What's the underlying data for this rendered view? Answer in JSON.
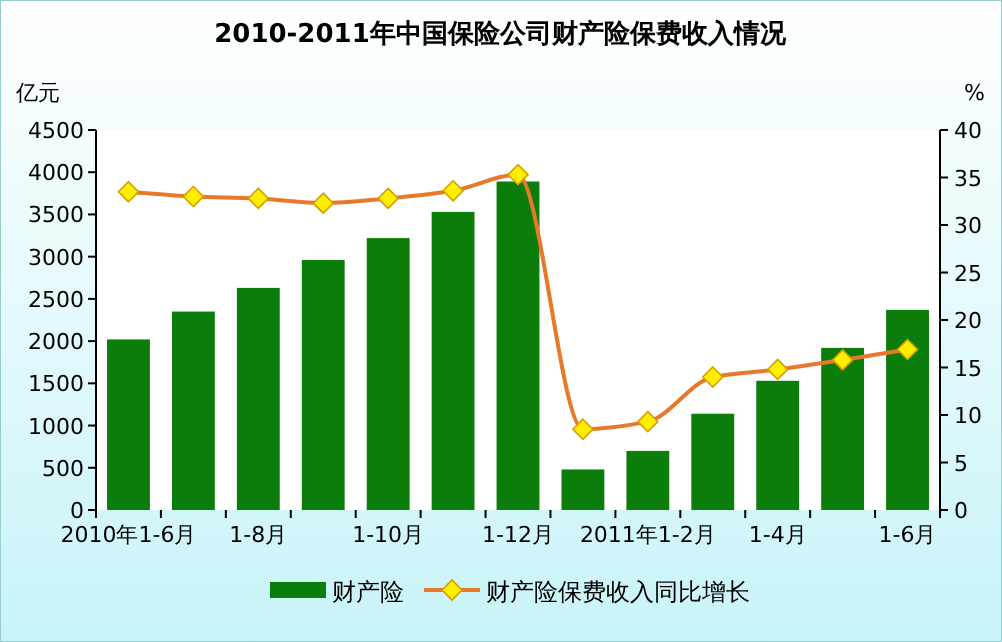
{
  "chart_data": {
    "type": "bar",
    "title": "2010-2011年中国保险公司财产险保费收入情况",
    "ylabel": "亿元",
    "y2label": "%",
    "categories": [
      "2010年1-6月",
      null,
      "1-8月",
      null,
      "1-10月",
      null,
      "1-12月",
      null,
      "2011年1-2月",
      null,
      "1-4月",
      null,
      "1-6月"
    ],
    "series": [
      {
        "name": "财产险",
        "color": "#0a7d0a",
        "values": [
          2020,
          2350,
          2630,
          2960,
          3220,
          3530,
          3890,
          480,
          700,
          1140,
          1530,
          1920,
          2370
        ]
      },
      {
        "name": "财产险保费收入同比增长",
        "type": "line",
        "axis": "y2",
        "color": "#e8782a",
        "marker": "diamond",
        "values": [
          33.5,
          33.0,
          32.8,
          32.3,
          32.8,
          33.6,
          35.3,
          8.5,
          9.3,
          14.0,
          14.8,
          15.8,
          16.9
        ]
      }
    ],
    "ylim": [
      0,
      4500
    ],
    "yticks": [
      0,
      500,
      1000,
      1500,
      2000,
      2500,
      3000,
      3500,
      4000,
      4500
    ],
    "y2lim": [
      0,
      40
    ],
    "y2ticks": [
      0,
      5,
      10,
      15,
      20,
      25,
      30,
      35,
      40
    ],
    "grid": false,
    "legend": "bottom"
  }
}
